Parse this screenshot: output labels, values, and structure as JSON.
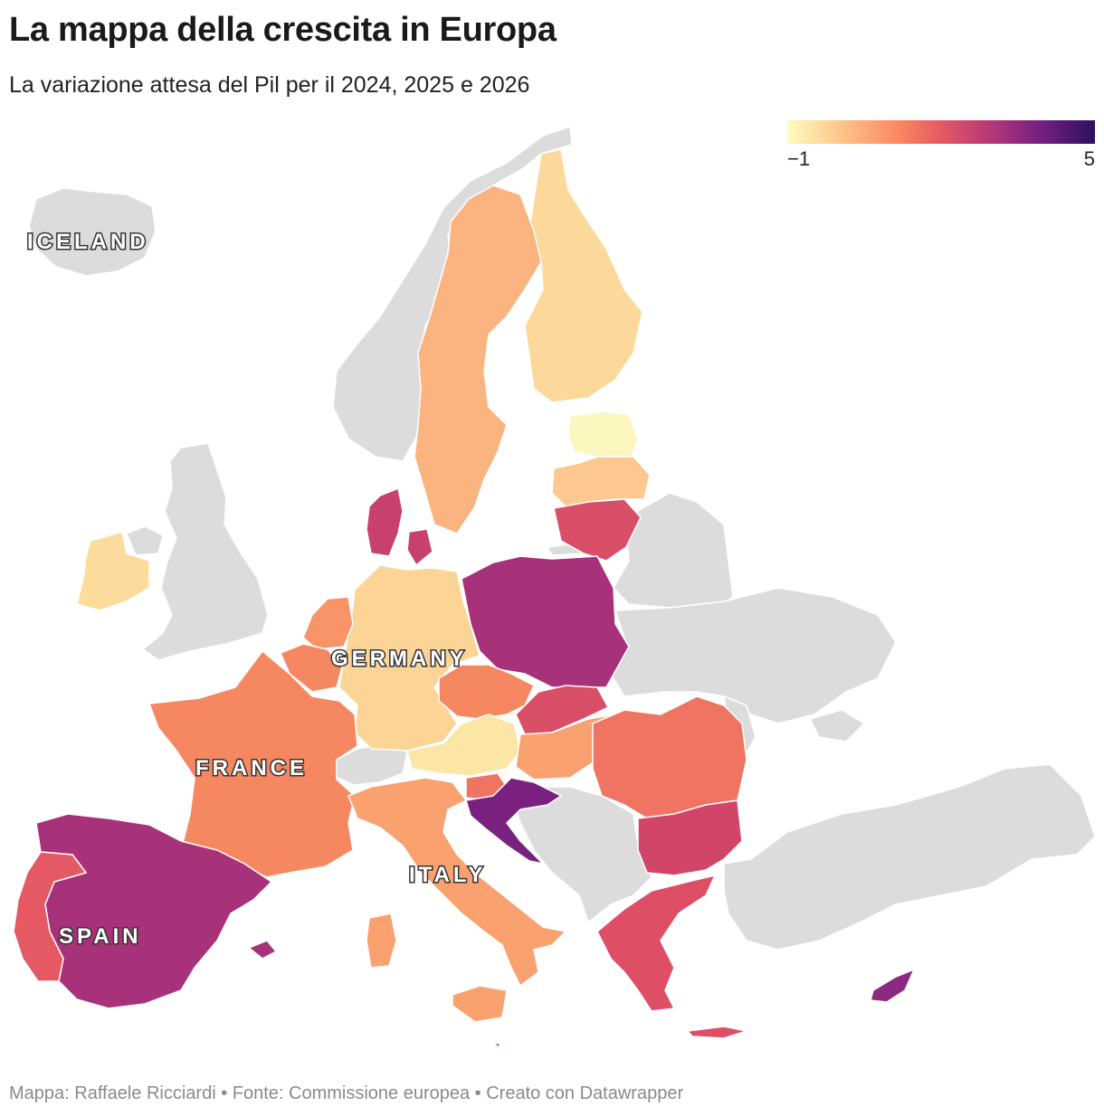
{
  "title": "La mappa della crescita in Europa",
  "subtitle": "La variazione attesa del Pil per il 2024, 2025 e 2026",
  "legend": {
    "min_label": "−1",
    "max_label": "5",
    "min_value": -1,
    "max_value": 5,
    "colors": [
      "#fcfdbf",
      "#fec287",
      "#fb8861",
      "#e55964",
      "#b73779",
      "#721f81",
      "#2c115f"
    ]
  },
  "map_labels": {
    "iceland": "ICELAND",
    "germany": "GERMANY",
    "france": "FRANCE",
    "italy": "ITALY",
    "spain": "SPAIN"
  },
  "colors": {
    "no_data": "#dcdcdc",
    "spain": "#a8327a",
    "portugal": "#e55964",
    "france": "#f58860",
    "germany": "#fbd496",
    "italy": "#f9a16f",
    "poland": "#a8327a",
    "sweden": "#fbb480",
    "finland": "#fcd99a",
    "estonia": "#fcf7be",
    "latvia": "#fcc890",
    "lithuania": "#d84f67",
    "denmark": "#c8406e",
    "ireland": "#fcdc9c",
    "netherlands": "#f89468",
    "belgium": "#f58860",
    "czechia": "#f58860",
    "austria": "#fce6a6",
    "slovakia": "#d84f67",
    "hungary": "#f9a16f",
    "romania": "#ef7462",
    "bulgaria": "#d14668",
    "greece": "#de4f66",
    "croatia": "#7a2180",
    "slovenia": "#ef7462",
    "cyprus": "#8c2a80",
    "malta": "#b83878"
  },
  "footer": "Mappa: Raffaele Ricciardi • Fonte: Commissione europea • Creato con Datawrapper"
}
